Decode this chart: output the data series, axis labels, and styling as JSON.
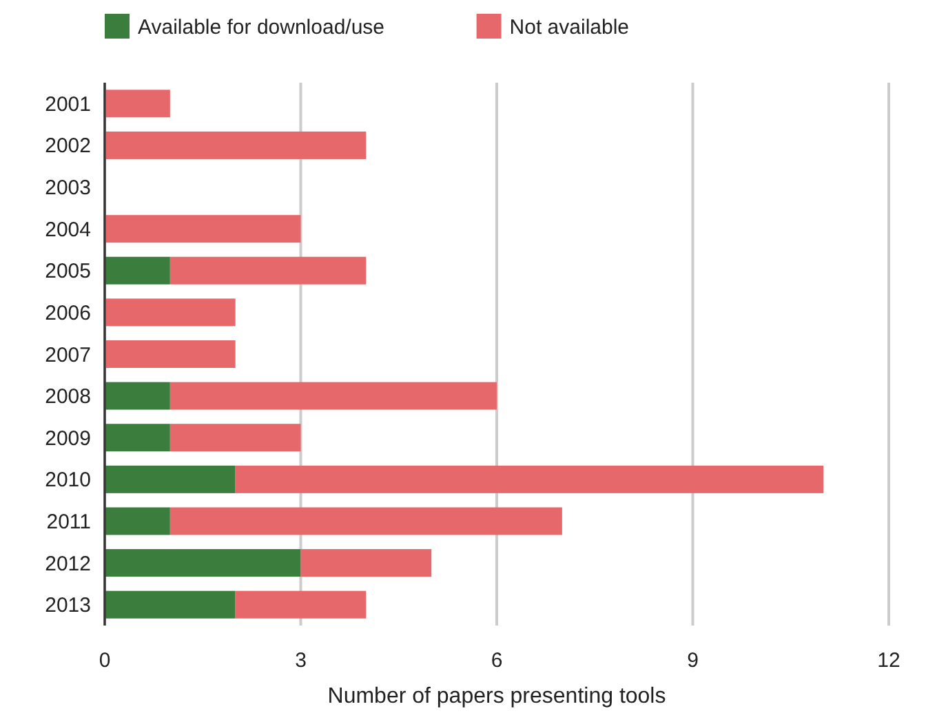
{
  "chart_data": {
    "type": "bar",
    "orientation": "horizontal",
    "stacked": true,
    "categories": [
      "2001",
      "2002",
      "2003",
      "2004",
      "2005",
      "2006",
      "2007",
      "2008",
      "2009",
      "2010",
      "2011",
      "2012",
      "2013"
    ],
    "series": [
      {
        "name": "Available for download/use",
        "color": "#3a7d3c",
        "values": [
          0,
          0,
          0,
          0,
          1,
          0,
          0,
          1,
          1,
          2,
          1,
          3,
          2
        ]
      },
      {
        "name": "Not available",
        "color": "#e6686a",
        "values": [
          1,
          4,
          0,
          3,
          3,
          2,
          2,
          5,
          2,
          9,
          6,
          2,
          2
        ]
      }
    ],
    "xlabel": "Number of papers presenting tools",
    "xlim": [
      0,
      12
    ],
    "xticks": [
      0,
      3,
      6,
      9,
      12
    ],
    "grid": "x",
    "legend": "top left"
  }
}
